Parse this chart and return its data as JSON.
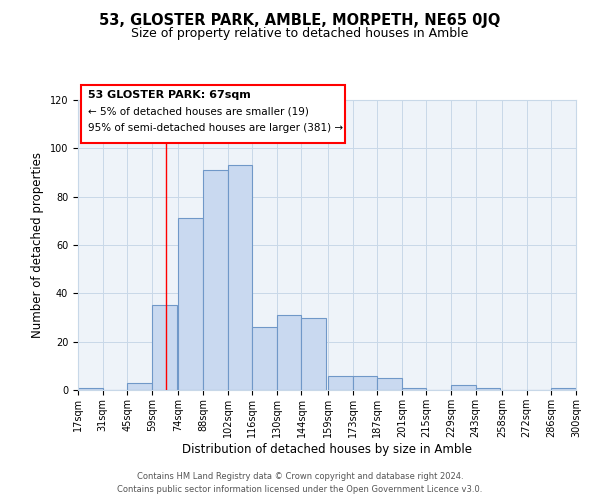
{
  "title": "53, GLOSTER PARK, AMBLE, MORPETH, NE65 0JQ",
  "subtitle": "Size of property relative to detached houses in Amble",
  "xlabel": "Distribution of detached houses by size in Amble",
  "ylabel": "Number of detached properties",
  "bin_labels": [
    "17sqm",
    "31sqm",
    "45sqm",
    "59sqm",
    "74sqm",
    "88sqm",
    "102sqm",
    "116sqm",
    "130sqm",
    "144sqm",
    "159sqm",
    "173sqm",
    "187sqm",
    "201sqm",
    "215sqm",
    "229sqm",
    "243sqm",
    "258sqm",
    "272sqm",
    "286sqm",
    "300sqm"
  ],
  "bin_edges": [
    17,
    31,
    45,
    59,
    74,
    88,
    102,
    116,
    130,
    144,
    159,
    173,
    187,
    201,
    215,
    229,
    243,
    258,
    272,
    286,
    300
  ],
  "bar_values": [
    1,
    0,
    3,
    35,
    71,
    91,
    93,
    26,
    31,
    30,
    6,
    6,
    5,
    1,
    0,
    2,
    1,
    0,
    0,
    1
  ],
  "bar_color": "#c9d9f0",
  "bar_edge_color": "#7098c8",
  "bar_linewidth": 0.8,
  "grid_color": "#c8d8e8",
  "bg_color": "#eef3f9",
  "red_line_x": 67,
  "annotation_line1": "53 GLOSTER PARK: 67sqm",
  "annotation_line2": "← 5% of detached houses are smaller (19)",
  "annotation_line3": "95% of semi-detached houses are larger (381) →",
  "ylim": [
    0,
    120
  ],
  "yticks": [
    0,
    20,
    40,
    60,
    80,
    100,
    120
  ],
  "footer_line1": "Contains HM Land Registry data © Crown copyright and database right 2024.",
  "footer_line2": "Contains public sector information licensed under the Open Government Licence v3.0.",
  "title_fontsize": 10.5,
  "subtitle_fontsize": 9,
  "axis_label_fontsize": 8.5,
  "tick_fontsize": 7,
  "annotation_fontsize": 8,
  "footer_fontsize": 6
}
